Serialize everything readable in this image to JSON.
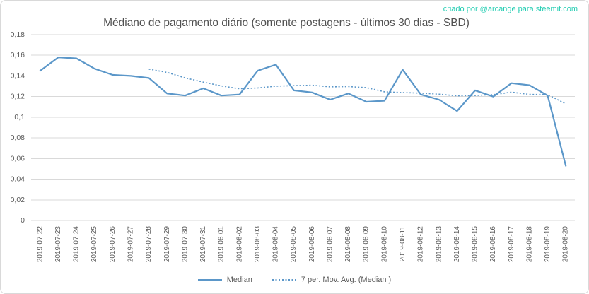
{
  "credit": "criado por @arcange para steemit.com",
  "colors": {
    "series_blue": "#5b97c9",
    "gridline": "#d9d9d9",
    "axis_text": "#595959",
    "title_text": "#515151",
    "credit_text": "#23cdb2",
    "frame_border": "#d9d9d9"
  },
  "chart_data": {
    "type": "line",
    "title": "Médiano de pagamento diário (somente postagens - últimos 30 dias - SBD)",
    "xlabel": "",
    "ylabel": "",
    "ylim": [
      0,
      0.18
    ],
    "grid": true,
    "legend_position": "bottom",
    "y_ticks": {
      "values": [
        0,
        0.02,
        0.04,
        0.06,
        0.08,
        0.1,
        0.12,
        0.14,
        0.16,
        0.18
      ],
      "labels": [
        "0",
        "0,02",
        "0,04",
        "0,06",
        "0,08",
        "0,1",
        "0,12",
        "0,14",
        "0,16",
        "0,18"
      ]
    },
    "categories": [
      "2019-07-22",
      "2019-07-23",
      "2019-07-24",
      "2019-07-25",
      "2019-07-26",
      "2019-07-27",
      "2019-07-28",
      "2019-07-29",
      "2019-07-30",
      "2019-07-31",
      "2019-08-01",
      "2019-08-02",
      "2019-08-03",
      "2019-08-04",
      "2019-08-05",
      "2019-08-06",
      "2019-08-07",
      "2019-08-08",
      "2019-08-09",
      "2019-08-10",
      "2019-08-11",
      "2019-08-12",
      "2019-08-13",
      "2019-08-14",
      "2019-08-15",
      "2019-08-16",
      "2019-08-17",
      "2019-08-18",
      "2019-08-19",
      "2019-08-20"
    ],
    "series": [
      {
        "name": "Median",
        "style": "solid",
        "values": [
          0.145,
          0.158,
          0.157,
          0.147,
          0.141,
          0.14,
          0.138,
          0.123,
          0.121,
          0.128,
          0.121,
          0.122,
          0.145,
          0.151,
          0.126,
          0.124,
          0.117,
          0.123,
          0.115,
          0.116,
          0.146,
          0.122,
          0.117,
          0.106,
          0.126,
          0.12,
          0.133,
          0.131,
          0.121,
          0.053
        ]
      },
      {
        "name": "7 per. Mov. Avg. (Median )",
        "style": "dotted",
        "values": [
          null,
          null,
          null,
          null,
          null,
          null,
          0.1466,
          0.1434,
          0.1381,
          0.134,
          0.1303,
          0.1276,
          0.1283,
          0.1301,
          0.1306,
          0.131,
          0.1294,
          0.1297,
          0.1287,
          0.1246,
          0.1239,
          0.1233,
          0.1223,
          0.1207,
          0.1211,
          0.1219,
          0.1243,
          0.1221,
          0.122,
          0.1129
        ]
      }
    ]
  }
}
